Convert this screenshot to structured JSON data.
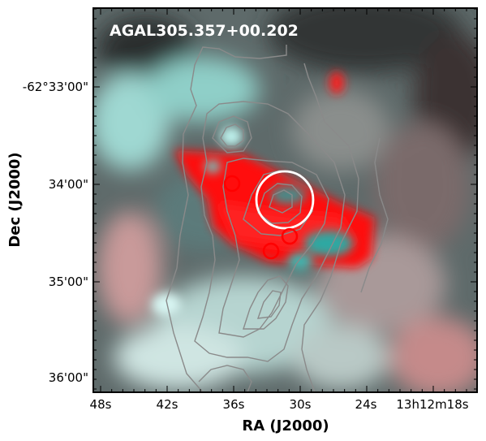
{
  "figure": {
    "title": "AGAL305.357+00.202",
    "xlabel": "RA (J2000)",
    "ylabel": "Dec (J2000)",
    "x_ticks": [
      "48s",
      "42s",
      "36s",
      "30s",
      "24s",
      "13h12m18s"
    ],
    "y_ticks": [
      "-62°33'00\"",
      "34'00\"",
      "35'00\"",
      "36'00\""
    ]
  },
  "colors": {
    "image_red": "#ff1010",
    "image_cyan": "#60d8d0",
    "contour": "#8a8a8a",
    "marker_red": "#ff0000",
    "marker_white": "#ffffff",
    "frame": "#000000"
  }
}
